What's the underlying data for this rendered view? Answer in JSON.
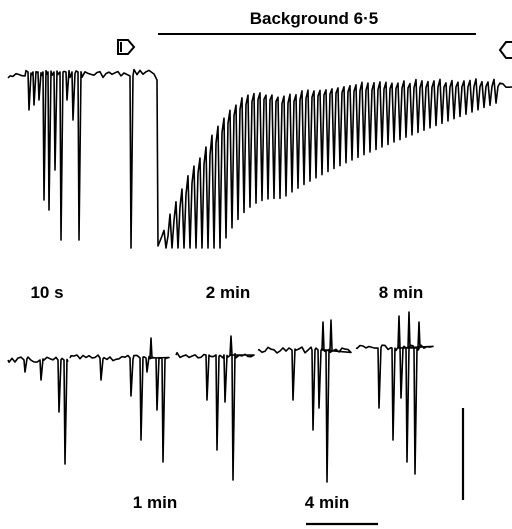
{
  "figure": {
    "bar_label": "Background 6·5",
    "panel_top_labels": [
      "10 s",
      "2 min",
      "8 min"
    ],
    "panel_bottom_labels": [
      "1 min",
      "4 min"
    ]
  },
  "chart_data": {
    "type": "line",
    "title": "",
    "xlabel": "",
    "ylabel": "",
    "annotations": [
      "Background 6·5",
      "10 s",
      "2 min",
      "8 min",
      "1 min",
      "4 min"
    ],
    "traces": [
      {
        "label": "",
        "description": "continuous record; arrow marks onset and end of Background 6·5 period"
      },
      {
        "label": "10 s"
      },
      {
        "label": "1 min"
      },
      {
        "label": "2 min"
      },
      {
        "label": "4 min"
      },
      {
        "label": "8 min"
      }
    ],
    "markers": [
      "arrow-right-icon",
      "arrow-left-icon"
    ],
    "scale_bars": [
      "vertical",
      "horizontal"
    ]
  }
}
